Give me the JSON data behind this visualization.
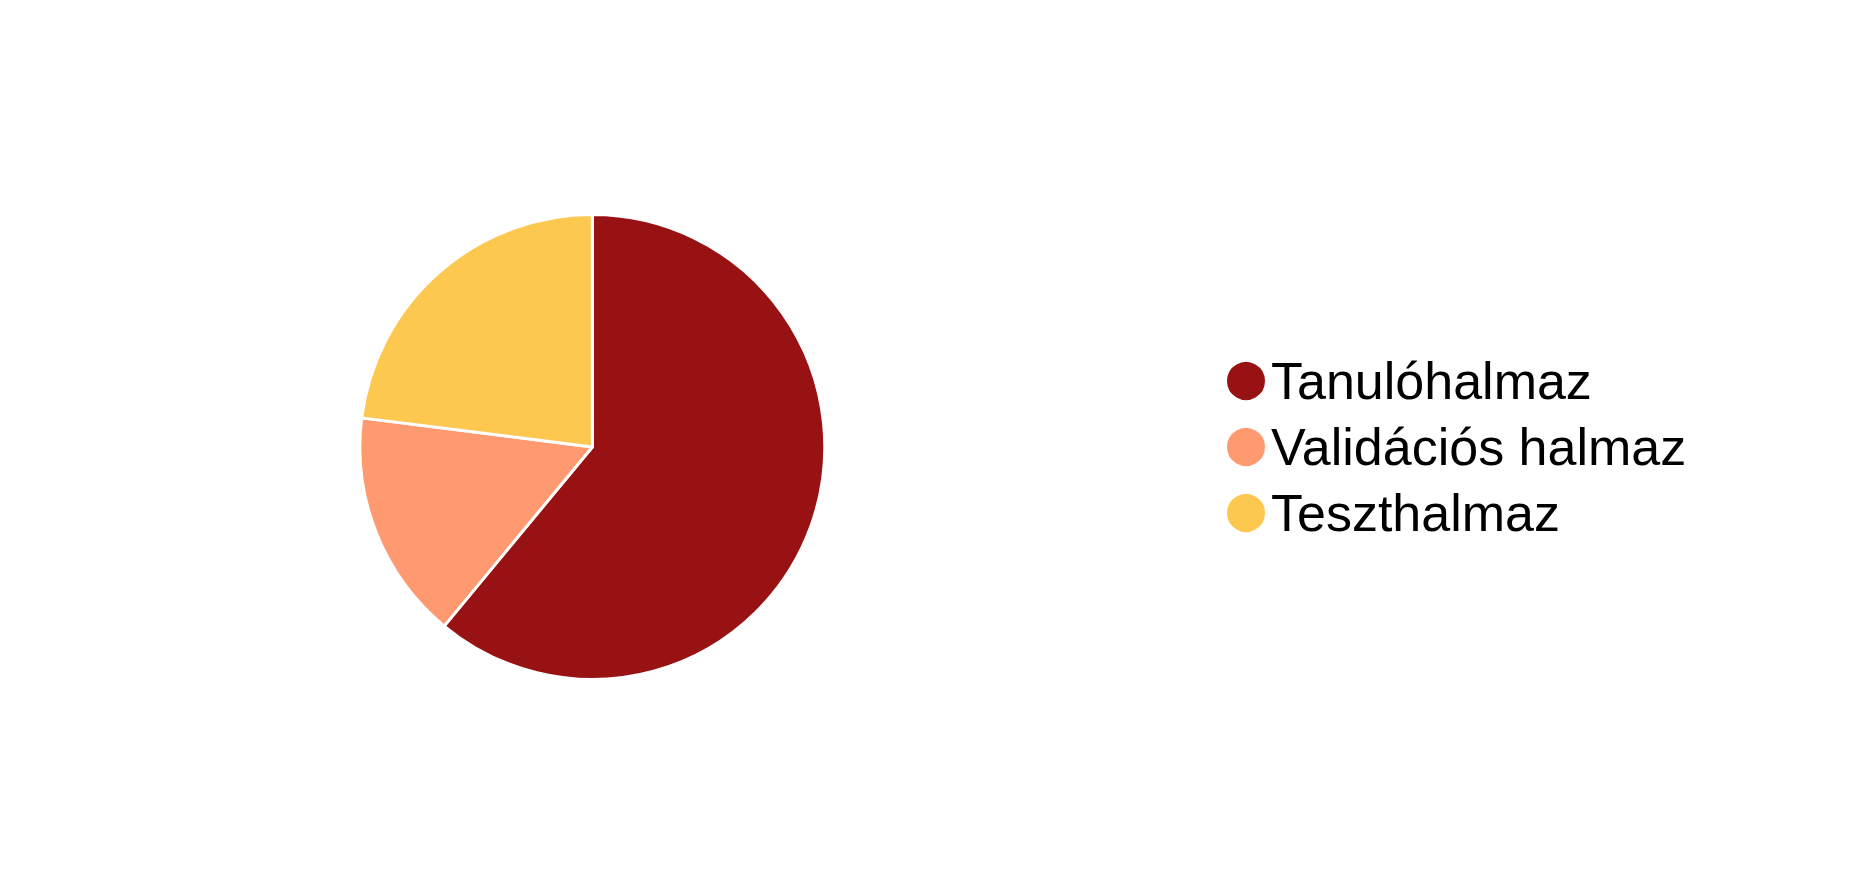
{
  "chart_data": {
    "type": "pie",
    "categories": [
      "Tanulóhalmaz",
      "Validációs halmaz",
      "Teszthalmaz"
    ],
    "values": [
      61,
      16,
      23
    ],
    "colors": [
      "#981214",
      "#ff9a70",
      "#fdc850"
    ],
    "legend": "right"
  }
}
